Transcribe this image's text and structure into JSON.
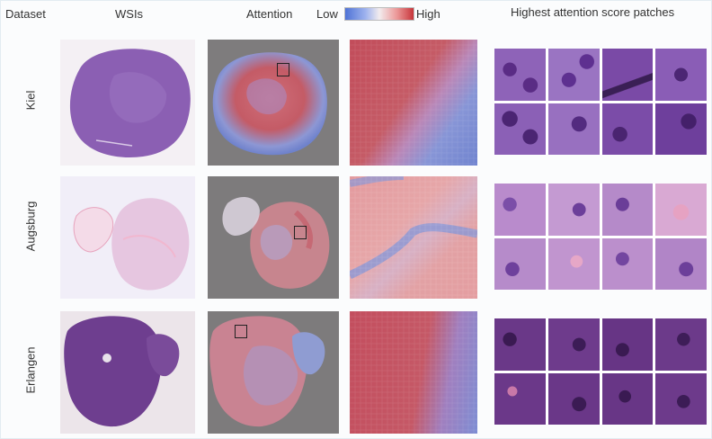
{
  "headers": {
    "dataset": "Dataset",
    "wsis": "WSIs",
    "attention": "Attention",
    "highest": "Highest attention score patches"
  },
  "colorbar": {
    "low": "Low",
    "high": "High",
    "colors": [
      "#4f73d6",
      "#f2ecee",
      "#c7353b"
    ]
  },
  "rows": [
    {
      "label": "Kiel"
    },
    {
      "label": "Augsburg"
    },
    {
      "label": "Erlangen"
    }
  ],
  "colors": {
    "he_purple": "#7a4aa6",
    "he_pink": "#e8a6c8",
    "slide_bg": "#7d7b7c",
    "attn_red": "#c8585e",
    "attn_blue": "#7f8fd0"
  }
}
